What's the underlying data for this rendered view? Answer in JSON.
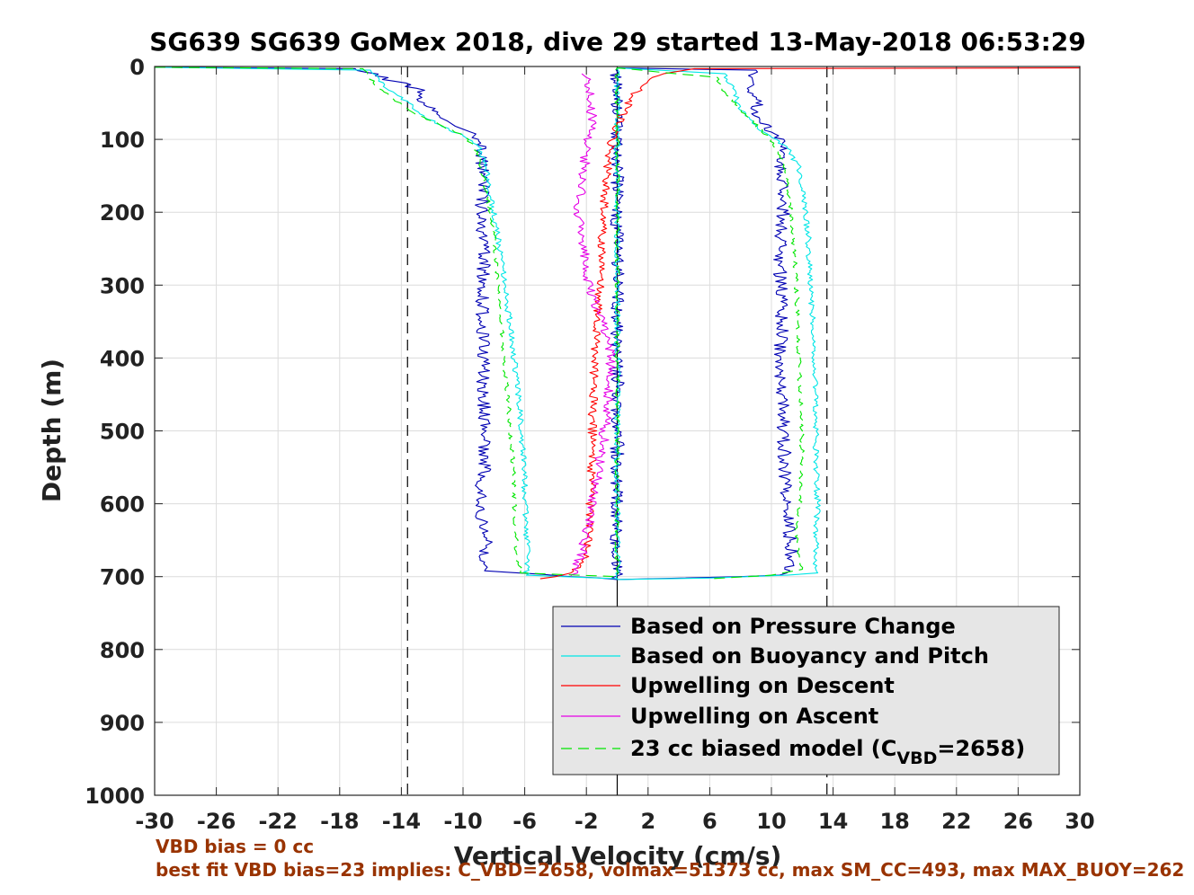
{
  "chart_data": {
    "type": "line",
    "title": "SG639 SG639 GoMex 2018, dive 29 started 13-May-2018 06:53:29",
    "xlabel": "Vertical Velocity (cm/s)",
    "ylabel": "Depth (m)",
    "xlim": [
      -30,
      30
    ],
    "ylim": [
      0,
      1000
    ],
    "y_reversed": true,
    "grid": true,
    "xticks": [
      "-30",
      "-26",
      "-22",
      "-18",
      "-14",
      "-10",
      "-6",
      "-2",
      "2",
      "6",
      "10",
      "14",
      "18",
      "22",
      "26",
      "30"
    ],
    "yticks": [
      "0",
      "100",
      "200",
      "300",
      "400",
      "500",
      "600",
      "700",
      "800",
      "900",
      "1000"
    ],
    "xtick_values": [
      -30,
      -26,
      -22,
      -18,
      -14,
      -10,
      -6,
      -2,
      2,
      6,
      10,
      14,
      18,
      22,
      26,
      30
    ],
    "ytick_values": [
      0,
      100,
      200,
      300,
      400,
      500,
      600,
      700,
      800,
      900,
      1000
    ],
    "reference_lines": [
      {
        "orientation": "vertical",
        "x": -13.6,
        "style": "dashed",
        "color": "#000000"
      },
      {
        "orientation": "vertical",
        "x": 13.6,
        "style": "dashed",
        "color": "#000000"
      },
      {
        "orientation": "vertical",
        "x": 0,
        "style": "solid",
        "color": "#000000"
      }
    ],
    "legend": {
      "position": "bottom-right",
      "background": "#e6e6e6",
      "entries": [
        {
          "label": "Based on Pressure Change",
          "color": "#0000b3",
          "style": "solid"
        },
        {
          "label": "Based on Buoyancy and Pitch",
          "color": "#00e6e6",
          "style": "solid"
        },
        {
          "label": "Upwelling on Descent",
          "color": "#ff0000",
          "style": "solid"
        },
        {
          "label": "Upwelling on Ascent",
          "color": "#e600e6",
          "style": "solid"
        },
        {
          "label": "23 cc biased model (C",
          "sub": "VBD",
          "suffix": "=2658)",
          "color": "#00e600",
          "style": "dashed"
        }
      ]
    },
    "series": [
      {
        "name": "Based on Pressure Change",
        "color": "#0000b3",
        "style": "solid",
        "noise": 0.45,
        "x": [
          -30,
          -17,
          -13,
          -12.5,
          -12,
          -11.5,
          -11,
          -10.5,
          -9.5,
          -9,
          -8.8,
          -8.7,
          -8.8,
          -8.6,
          -8.7,
          -8.8,
          -8.6,
          -8.7,
          -8.5,
          -8.6,
          -9.0,
          -8.5,
          -8.6,
          -8.6,
          0,
          0,
          9,
          8.8,
          9,
          9.2,
          10,
          10.8,
          10.6,
          10.8,
          10.5,
          10.6,
          10.7,
          10.6,
          10.7,
          10.8,
          10.9,
          11,
          11.2,
          11.4,
          11.2,
          11.0,
          10.5,
          8,
          0
        ],
        "y": [
          1,
          3,
          30,
          50,
          60,
          70,
          75,
          82,
          90,
          100,
          120,
          150,
          200,
          250,
          300,
          350,
          400,
          450,
          500,
          550,
          600,
          650,
          680,
          692,
          704,
          2,
          5,
          20,
          50,
          70,
          90,
          100,
          150,
          200,
          250,
          300,
          350,
          400,
          450,
          500,
          550,
          600,
          650,
          680,
          692,
          695,
          698,
          700,
          704
        ]
      },
      {
        "name": "Based on Buoyancy and Pitch",
        "color": "#00e6e6",
        "style": "solid",
        "noise": 0.2,
        "x": [
          -30,
          -16,
          -15.5,
          -15,
          -13.5,
          -12.5,
          -11.5,
          -10,
          -9,
          -8.5,
          -8.2,
          -7.8,
          -7.4,
          -7.1,
          -6.8,
          -6.5,
          -6.3,
          -6.1,
          -6.0,
          -5.9,
          -5.8,
          -5.9,
          0,
          0,
          7,
          7.5,
          8,
          9.5,
          11,
          11.8,
          12.2,
          12.4,
          12.5,
          12.7,
          12.8,
          12.9,
          12.9,
          13.0,
          12.9,
          12.8,
          13,
          11,
          6,
          0
        ],
        "y": [
          1,
          5,
          15,
          30,
          50,
          70,
          80,
          95,
          110,
          140,
          180,
          230,
          280,
          330,
          380,
          430,
          480,
          530,
          580,
          630,
          680,
          698,
          703,
          2,
          10,
          30,
          60,
          90,
          110,
          140,
          190,
          240,
          300,
          360,
          420,
          480,
          540,
          600,
          650,
          680,
          695,
          698,
          702,
          704
        ]
      },
      {
        "name": "Upwelling on Descent",
        "color": "#ff0000",
        "style": "solid",
        "noise": 0.3,
        "x": [
          30,
          5,
          3,
          2,
          1.5,
          1,
          0.5,
          0,
          -0.3,
          -0.6,
          -0.8,
          -1.0,
          -1.1,
          -1.2,
          -1.4,
          -1.5,
          -1.6,
          -1.6,
          -1.7,
          -1.8,
          -2.0,
          -2.2,
          -3,
          -4,
          -5
        ],
        "y": [
          2,
          3,
          10,
          20,
          30,
          40,
          60,
          80,
          100,
          130,
          180,
          230,
          280,
          330,
          380,
          430,
          480,
          530,
          580,
          620,
          660,
          680,
          695,
          700,
          703
        ]
      },
      {
        "name": "Upwelling on Ascent",
        "color": "#e600e6",
        "style": "solid",
        "noise": 0.35,
        "x": [
          -3.0,
          -2.8,
          -2.5,
          -2.2,
          -1.8,
          -1.3,
          -0.8,
          -0.5,
          -0.4,
          -0.6,
          -1.0,
          -1.5,
          -2.0,
          -2.2,
          -2.5,
          -2.3,
          -2.0,
          -1.8,
          -1.6,
          -1.7,
          -1.8,
          -2.0,
          -2.3
        ],
        "y": [
          700,
          690,
          680,
          660,
          620,
          560,
          500,
          440,
          400,
          380,
          350,
          320,
          280,
          240,
          200,
          160,
          120,
          90,
          70,
          50,
          30,
          15,
          10
        ]
      },
      {
        "name": "23 cc biased model (CVBD=2658)",
        "color": "#00e600",
        "style": "dashed",
        "noise": 0.15,
        "x": [
          -30,
          -16.5,
          -16,
          -15.5,
          -14.5,
          -13.5,
          -12.5,
          -11.5,
          -10,
          -9.2,
          -8.8,
          -8.4,
          -8.0,
          -7.8,
          -7.6,
          -7.4,
          -7.2,
          -7.0,
          -6.8,
          -6.7,
          -6.6,
          -6.5,
          -6.3,
          0,
          0,
          6.5,
          6.8,
          8.5,
          10,
          10.8,
          11.2,
          11.4,
          11.6,
          11.7,
          11.8,
          11.9,
          12.0,
          11.9,
          11.6,
          11.8,
          12,
          10,
          6
        ],
        "y": [
          1,
          3,
          15,
          30,
          45,
          60,
          70,
          80,
          95,
          110,
          140,
          180,
          230,
          280,
          330,
          380,
          430,
          480,
          530,
          580,
          630,
          670,
          695,
          700,
          2,
          15,
          30,
          70,
          100,
          130,
          180,
          230,
          290,
          350,
          410,
          470,
          530,
          590,
          640,
          670,
          690,
          698,
          703
        ]
      }
    ]
  },
  "annotations": {
    "line1": "VBD bias = 0 cc",
    "line2": "best fit VBD bias=23 implies: C_VBD=2658, volmax=51373 cc, max SM_CC=493, max MAX_BUOY=262"
  }
}
